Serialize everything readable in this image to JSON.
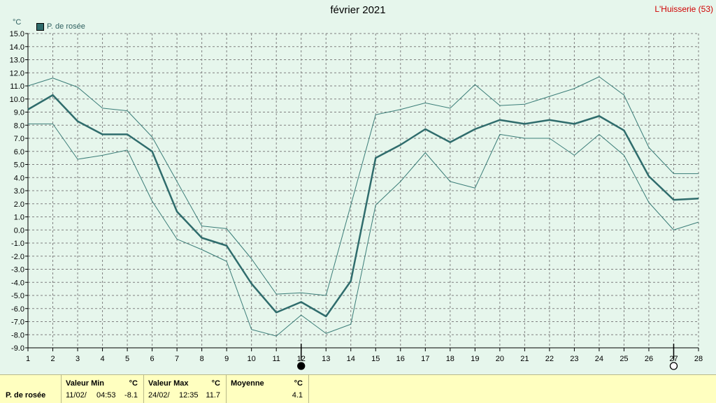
{
  "header": {
    "title": "février 2021",
    "station": "L'Huisserie (53)",
    "unit": "°C",
    "legend_label": "P. de rosée"
  },
  "colors": {
    "background": "#e6f6ec",
    "series_main": "#2f6c6c",
    "series_band": "#3b7d78",
    "grid": "#808080",
    "station": "#d00000",
    "stats_bg": "#ffffc0"
  },
  "chart_data": {
    "type": "line",
    "title": "février 2021",
    "ylabel": "°C",
    "ylim": [
      -9,
      15
    ],
    "xlim": [
      1,
      28
    ],
    "grid": true,
    "legend_position": "top-left",
    "x": [
      1,
      2,
      3,
      4,
      5,
      6,
      7,
      8,
      9,
      10,
      11,
      12,
      13,
      14,
      15,
      16,
      17,
      18,
      19,
      20,
      21,
      22,
      23,
      24,
      25,
      26,
      27,
      28
    ],
    "x_tick_labels": [
      "1",
      "2",
      "3",
      "4",
      "5",
      "6",
      "7",
      "8",
      "9",
      "10",
      "11",
      "12",
      "13",
      "14",
      "15",
      "16",
      "17",
      "18",
      "19",
      "20",
      "21",
      "22",
      "23",
      "24",
      "25",
      "26",
      "27",
      "28"
    ],
    "y_tick_labels": [
      "-9.0",
      "-8.0",
      "-7.0",
      "-6.0",
      "-5.0",
      "-4.0",
      "-3.0",
      "-2.0",
      "-1.0",
      "0.0",
      "1.0",
      "2.0",
      "3.0",
      "4.0",
      "5.0",
      "6.0",
      "7.0",
      "8.0",
      "9.0",
      "10.0",
      "11.0",
      "12.0",
      "13.0",
      "14.0",
      "15.0"
    ],
    "series": [
      {
        "name": "P. de rosée",
        "role": "mean",
        "values": [
          9.2,
          10.3,
          8.3,
          7.3,
          7.3,
          6.0,
          1.4,
          -0.6,
          -1.2,
          -4.1,
          -6.3,
          -5.5,
          -6.6,
          -3.9,
          5.5,
          6.5,
          7.7,
          6.7,
          7.7,
          8.4,
          8.1,
          8.4,
          8.1,
          8.7,
          7.6,
          4.1,
          2.3,
          2.4
        ]
      },
      {
        "role": "max",
        "values": [
          11.0,
          11.6,
          10.9,
          9.3,
          9.1,
          7.1,
          3.7,
          0.3,
          0.1,
          -2.2,
          -4.9,
          -4.8,
          -5.0,
          1.9,
          8.8,
          9.2,
          9.7,
          9.3,
          11.1,
          9.5,
          9.6,
          10.2,
          10.8,
          11.7,
          10.3,
          6.3,
          4.3,
          4.3
        ]
      },
      {
        "role": "min",
        "values": [
          8.1,
          8.1,
          5.4,
          5.7,
          6.1,
          2.2,
          -0.7,
          -1.5,
          -2.4,
          -7.6,
          -8.1,
          -6.5,
          -7.9,
          -7.2,
          1.9,
          3.7,
          5.9,
          3.7,
          3.2,
          7.3,
          7.0,
          7.0,
          5.7,
          7.3,
          5.7,
          2.1,
          0.0,
          0.6
        ]
      }
    ],
    "markers": [
      {
        "x": 12,
        "icon": "new-moon-icon"
      },
      {
        "x": 27,
        "icon": "full-moon-icon"
      }
    ]
  },
  "stats": {
    "row_label": "P. de rosée",
    "min": {
      "header": "Valeur Min",
      "unit": "°C",
      "date": "11/02/",
      "time": "04:53",
      "value": "-8.1"
    },
    "max": {
      "header": "Valeur Max",
      "unit": "°C",
      "date": "24/02/",
      "time": "12:35",
      "value": "11.7"
    },
    "avg": {
      "header": "Moyenne",
      "unit": "°C",
      "value": "4.1"
    }
  }
}
